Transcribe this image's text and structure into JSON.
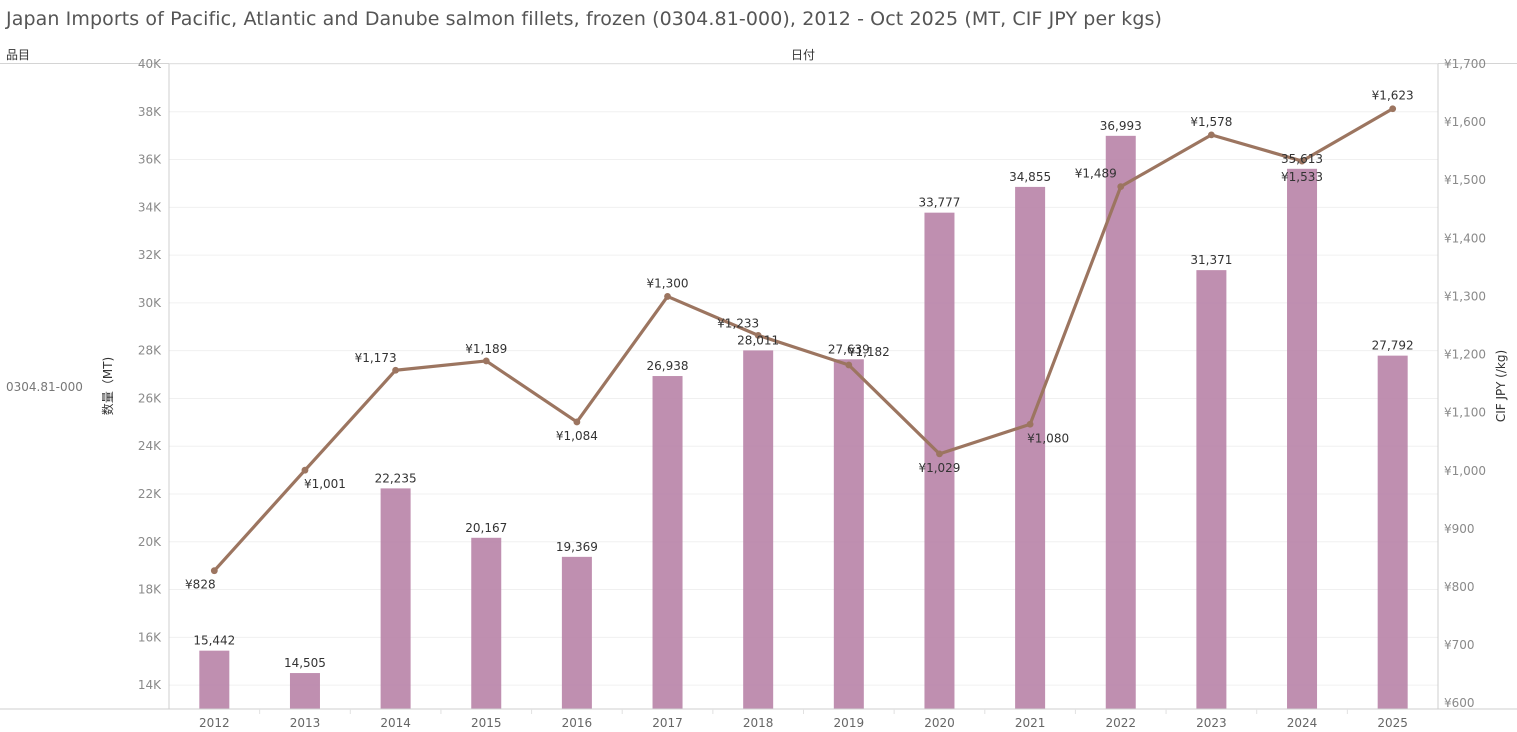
{
  "title": "Japan Imports of Pacific, Atlantic and Danube salmon fillets, frozen (0304.81-000), 2012 - Oct 2025 (MT, CIF JPY per kgs)",
  "headers": {
    "item": "品目",
    "date": "日付"
  },
  "row_label": "0304.81-000",
  "chart_data": {
    "type": "bar+line",
    "categories": [
      "2012",
      "2013",
      "2014",
      "2015",
      "2016",
      "2017",
      "2018",
      "2019",
      "2020",
      "2021",
      "2022",
      "2023",
      "2024",
      "2025"
    ],
    "series": [
      {
        "name": "数量（MT)",
        "type": "bar",
        "axis": "left",
        "color": "#b67fa5",
        "values": [
          15442,
          14505,
          22235,
          20167,
          19369,
          26938,
          28011,
          27639,
          33777,
          34855,
          36993,
          31371,
          35613,
          27792
        ],
        "labels": [
          "15,442",
          "14,505",
          "22,235",
          "20,167",
          "19,369",
          "26,938",
          "28,011",
          "27,639",
          "33,777",
          "34,855",
          "36,993",
          "31,371",
          "35,613",
          "27,792"
        ]
      },
      {
        "name": "CIF JPY (/kg)",
        "type": "line",
        "axis": "right",
        "color": "#9c7560",
        "values": [
          828,
          1001,
          1173,
          1189,
          1084,
          1300,
          1233,
          1182,
          1029,
          1080,
          1489,
          1578,
          1533,
          1623
        ],
        "labels": [
          "¥828",
          "¥1,001",
          "¥1,173",
          "¥1,189",
          "¥1,084",
          "¥1,300",
          "¥1,233",
          "¥1,182",
          "¥1,029",
          "¥1,080",
          "¥1,489",
          "¥1,578",
          "¥1,533",
          "¥1,623"
        ]
      }
    ],
    "y_left": {
      "label": "数量（MT)",
      "range": [
        13000,
        40000
      ],
      "ticks": [
        14000,
        16000,
        18000,
        20000,
        22000,
        24000,
        26000,
        28000,
        30000,
        32000,
        34000,
        36000,
        38000,
        40000
      ],
      "tick_labels": [
        "14K",
        "16K",
        "18K",
        "20K",
        "22K",
        "24K",
        "26K",
        "28K",
        "30K",
        "32K",
        "34K",
        "36K",
        "38K",
        "40K"
      ]
    },
    "y_right": {
      "label": "CIF JPY (/kg)",
      "range": [
        590,
        1700
      ],
      "ticks": [
        600,
        700,
        800,
        900,
        1000,
        1100,
        1200,
        1300,
        1400,
        1500,
        1600,
        1700
      ],
      "tick_labels": [
        "¥600",
        "¥700",
        "¥800",
        "¥900",
        "¥1,000",
        "¥1,100",
        "¥1,200",
        "¥1,300",
        "¥1,400",
        "¥1,500",
        "¥1,600",
        "¥1,700"
      ]
    },
    "grid": true
  }
}
